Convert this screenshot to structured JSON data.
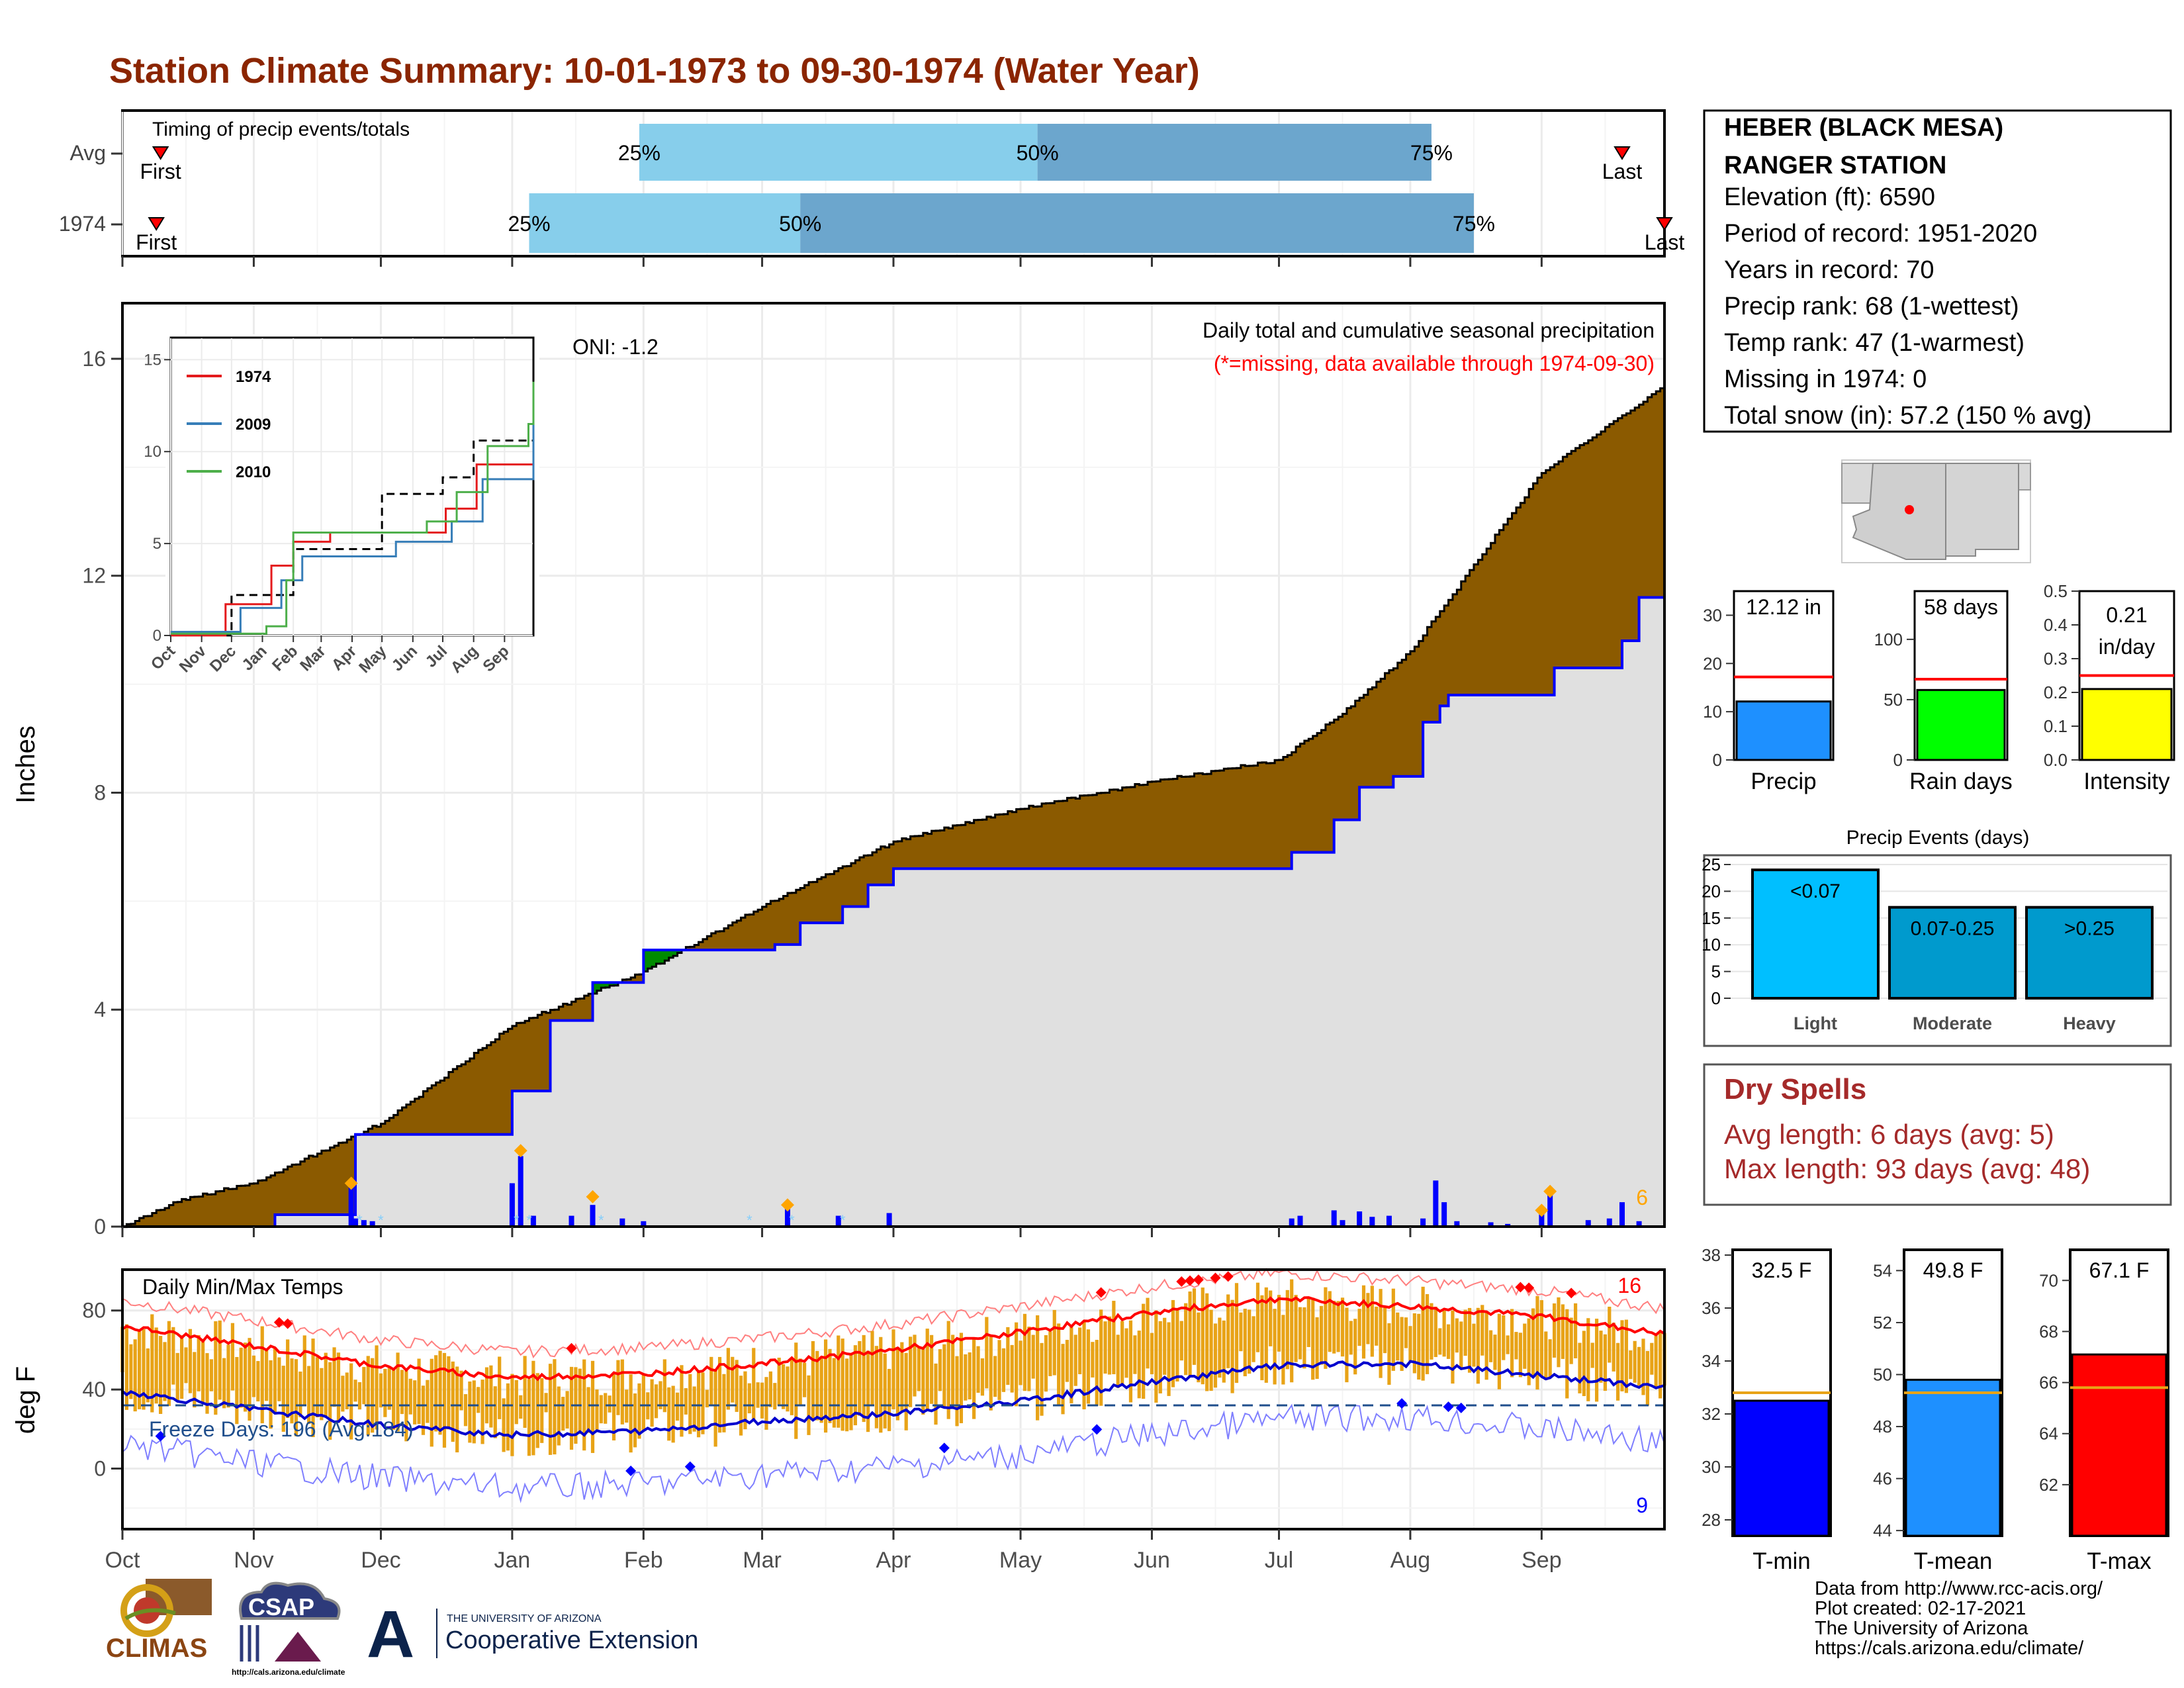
{
  "title": "Station Climate Summary: 10-01-1973 to 09-30-1974 (Water Year)",
  "colors": {
    "title": "#8b2500",
    "light_blue": "#87ceeb",
    "steel_blue": "#6ca6cd",
    "brown": "#8b5a00",
    "green": "#008b00",
    "red": "#ff0000",
    "blue": "#0000ff",
    "orange": "#e8a317",
    "dry_red": "#a52a2a"
  },
  "timing": {
    "title": "Timing of precip events/totals",
    "rows": [
      {
        "label": "Avg",
        "first_label": "First",
        "last_label": "Last",
        "q25": "25%",
        "q50": "50%",
        "q75": "75%"
      },
      {
        "label": "1974",
        "first_label": "First",
        "last_label": "Last",
        "q25": "25%",
        "q50": "50%",
        "q75": "75%"
      }
    ],
    "avg_marks": {
      "first": "1973-10-10",
      "q25": "1974-01-31",
      "q50": "1974-05-05",
      "q75": "1974-08-06",
      "last": "1974-09-20"
    },
    "year_marks": {
      "first": "1973-10-09",
      "q25": "1974-01-05",
      "q50": "1974-03-10",
      "q75": "1974-08-16",
      "last": "1974-09-30"
    }
  },
  "precip": {
    "ylabel": "Inches",
    "yticks": [
      0,
      4,
      8,
      12,
      16
    ],
    "ylim": [
      0,
      17
    ],
    "caption": "Daily total and cumulative seasonal precipitation",
    "note": "(*=missing, data available through 1974-09-30)",
    "oni": "ONI: -1.2",
    "extreme_count": "6",
    "chart_data": {
      "type": "area",
      "series": [
        {
          "name": "",
          "kind": "normal cumulative",
          "x": [
            "1973-10-01",
            "1973-10-15",
            "1973-11-01",
            "1973-12-01",
            "1974-01-01",
            "1974-02-01",
            "1974-03-01",
            "1974-04-01",
            "1974-05-01",
            "1974-06-01",
            "1974-07-01",
            "1974-07-15",
            "1974-08-01",
            "1974-09-01",
            "1974-09-30"
          ],
          "y": [
            0.0,
            0.5,
            0.8,
            1.9,
            3.7,
            4.7,
            5.9,
            7.1,
            7.7,
            8.2,
            8.6,
            9.4,
            10.6,
            13.9,
            15.5
          ]
        },
        {
          "name": "1974",
          "kind": "observed cumulative",
          "x": [
            "1973-10-01",
            "1973-11-06",
            "1973-11-23",
            "1973-11-25",
            "1973-12-31",
            "1974-01-01",
            "1974-01-09",
            "1974-01-10",
            "1974-01-20",
            "1974-01-26",
            "1974-02-01",
            "1974-02-12",
            "1974-03-04",
            "1974-03-07",
            "1974-03-10",
            "1974-03-20",
            "1974-03-26",
            "1974-04-01",
            "1974-06-01",
            "1974-07-01",
            "1974-07-04",
            "1974-07-14",
            "1974-07-17",
            "1974-07-20",
            "1974-07-28",
            "1974-08-04",
            "1974-08-08",
            "1974-08-10",
            "1974-09-01",
            "1974-09-04",
            "1974-09-17",
            "1974-09-20",
            "1974-09-24",
            "1974-09-30"
          ],
          "y": [
            0.0,
            0.22,
            0.22,
            1.7,
            1.7,
            2.5,
            2.5,
            3.8,
            4.5,
            4.5,
            5.1,
            5.1,
            5.2,
            5.2,
            5.6,
            5.9,
            6.3,
            6.6,
            6.6,
            6.6,
            6.9,
            7.5,
            7.5,
            8.1,
            8.3,
            9.3,
            9.6,
            9.8,
            9.8,
            10.3,
            10.3,
            10.8,
            11.6,
            12.1
          ]
        }
      ],
      "daily_bars": [
        [
          "1973-11-24",
          0.75
        ],
        [
          "1973-11-25",
          0.15
        ],
        [
          "1973-11-27",
          0.12
        ],
        [
          "1973-11-29",
          0.1
        ],
        [
          "1974-01-01",
          0.8
        ],
        [
          "1974-01-03",
          1.3
        ],
        [
          "1974-01-06",
          0.2
        ],
        [
          "1974-01-15",
          0.2
        ],
        [
          "1974-01-20",
          0.4
        ],
        [
          "1974-01-27",
          0.15
        ],
        [
          "1974-02-01",
          0.1
        ],
        [
          "1974-03-07",
          0.35
        ],
        [
          "1974-03-19",
          0.2
        ],
        [
          "1974-03-31",
          0.25
        ],
        [
          "1974-07-04",
          0.15
        ],
        [
          "1974-07-06",
          0.2
        ],
        [
          "1974-07-14",
          0.3
        ],
        [
          "1974-07-16",
          0.12
        ],
        [
          "1974-07-20",
          0.28
        ],
        [
          "1974-07-23",
          0.18
        ],
        [
          "1974-07-27",
          0.2
        ],
        [
          "1974-08-04",
          0.15
        ],
        [
          "1974-08-07",
          0.85
        ],
        [
          "1974-08-09",
          0.45
        ],
        [
          "1974-08-12",
          0.1
        ],
        [
          "1974-08-20",
          0.08
        ],
        [
          "1974-08-24",
          0.05
        ],
        [
          "1974-09-01",
          0.25
        ],
        [
          "1974-09-03",
          0.6
        ],
        [
          "1974-09-12",
          0.12
        ],
        [
          "1974-09-17",
          0.15
        ],
        [
          "1974-09-20",
          0.45
        ],
        [
          "1974-09-24",
          0.1
        ]
      ],
      "extreme_marks": [
        [
          "1973-11-24",
          0.8
        ],
        [
          "1974-01-03",
          1.4
        ],
        [
          "1974-01-20",
          0.55
        ],
        [
          "1974-03-07",
          0.4
        ],
        [
          "1974-09-01",
          0.3
        ],
        [
          "1974-09-03",
          0.65
        ]
      ]
    }
  },
  "inset": {
    "yticks": [
      0,
      5,
      10,
      15
    ],
    "months": [
      "Oct",
      "Nov",
      "Dec",
      "Jan",
      "Feb",
      "Mar",
      "Apr",
      "May",
      "Jun",
      "Jul",
      "Aug",
      "Sep"
    ],
    "legend": [
      {
        "label": "1974",
        "color": "#e41a1c"
      },
      {
        "label": "2009",
        "color": "#377eb8"
      },
      {
        "label": "2010",
        "color": "#4daf4a"
      }
    ],
    "chart_data": {
      "type": "line",
      "series": [
        {
          "name": "normal",
          "x": [
            "1973-10-01",
            "1973-12-01",
            "1974-02-01",
            "1974-05-01",
            "1974-07-01",
            "1974-08-01",
            "1974-09-30"
          ],
          "y": [
            0,
            2.2,
            4.7,
            7.7,
            8.6,
            10.6,
            15.5
          ]
        },
        {
          "name": "1974",
          "x": [
            "1973-10-01",
            "1973-11-25",
            "1974-01-10",
            "1974-02-01",
            "1974-03-10",
            "1974-07-04",
            "1974-08-04",
            "1974-09-30"
          ],
          "y": [
            0,
            1.7,
            3.8,
            5.1,
            5.6,
            6.9,
            9.3,
            12.1
          ]
        },
        {
          "name": "2009",
          "x": [
            "1973-10-01",
            "1973-12-10",
            "1974-01-20",
            "1974-02-10",
            "1974-05-15",
            "1974-07-10",
            "1974-08-10",
            "1974-09-30"
          ],
          "y": [
            0.2,
            1.5,
            3.0,
            4.3,
            5.1,
            6.2,
            8.5,
            11.7
          ]
        },
        {
          "name": "2010",
          "x": [
            "1973-10-01",
            "1974-01-05",
            "1974-01-25",
            "1974-02-01",
            "1974-06-15",
            "1974-07-15",
            "1974-08-15",
            "1974-09-25",
            "1974-09-30"
          ],
          "y": [
            0.1,
            0.5,
            3.0,
            5.6,
            6.2,
            7.8,
            10.3,
            11.5,
            13.8
          ]
        }
      ]
    }
  },
  "temps": {
    "ylabel": "deg F",
    "yticks": [
      0,
      40,
      80
    ],
    "ylim": [
      -30,
      100
    ],
    "title": "Daily Min/Max Temps",
    "freeze": "Freeze Days: 196 (Avg:184)",
    "freeze_line": 32,
    "hot_count": "16",
    "cold_count": "9",
    "chart_data": {
      "type": "line",
      "series": [
        {
          "name": "normal max",
          "x": [
            "1973-10-01",
            "1973-11-01",
            "1973-12-01",
            "1974-01-01",
            "1974-02-01",
            "1974-03-01",
            "1974-04-01",
            "1974-05-01",
            "1974-06-01",
            "1974-07-01",
            "1974-08-01",
            "1974-09-01",
            "1974-09-30"
          ],
          "y": [
            72,
            62,
            52,
            46,
            48,
            53,
            60,
            69,
            79,
            86,
            82,
            77,
            68
          ]
        },
        {
          "name": "normal min",
          "x": [
            "1973-10-01",
            "1973-11-01",
            "1973-12-01",
            "1974-01-01",
            "1974-02-01",
            "1974-03-01",
            "1974-04-01",
            "1974-05-01",
            "1974-06-01",
            "1974-07-01",
            "1974-08-01",
            "1974-09-01",
            "1974-09-30"
          ],
          "y": [
            39,
            30,
            22,
            17,
            19,
            24,
            28,
            34,
            44,
            52,
            53,
            47,
            41
          ]
        }
      ]
    }
  },
  "station": {
    "name_line1": "HEBER (BLACK MESA)",
    "name_line2": "RANGER STATION",
    "elevation": "Elevation (ft): 6590",
    "period": "Period of record: 1951-2020",
    "years": "Years in record: 70",
    "precip_rank": "Precip rank: 68 (1-wettest)",
    "temp_rank": "Temp rank: 47 (1-warmest)",
    "missing": "Missing in 1974: 0",
    "snow": "Total snow (in): 57.2 (150 % avg)"
  },
  "summary_bars": [
    {
      "label": "Precip",
      "value": 12.12,
      "avg": 17.2,
      "value_text": "12.12 in",
      "ymax": 35,
      "ticks": [
        "0",
        "10",
        "20",
        "30"
      ],
      "tick_values": [
        0,
        10,
        20,
        30
      ],
      "color": "#1e90ff"
    },
    {
      "label": "Rain days",
      "value": 58,
      "avg": 67,
      "value_text": "58 days",
      "ymax": 140,
      "ticks": [
        "0",
        "50",
        "100"
      ],
      "tick_values": [
        0,
        50,
        100
      ],
      "color": "#00ff00"
    },
    {
      "label": "Intensity",
      "value": 0.21,
      "avg": 0.25,
      "value_text": "0.21 in/day",
      "ymax": 0.5,
      "ticks": [
        "0.0",
        "0.1",
        "0.2",
        "0.3",
        "0.4",
        "0.5"
      ],
      "tick_values": [
        0,
        0.1,
        0.2,
        0.3,
        0.4,
        0.5
      ],
      "color": "#ffff00"
    }
  ],
  "events": {
    "title": "Precip Events (days)",
    "yticks": [
      0,
      5,
      10,
      15,
      20,
      25
    ],
    "chart_data": {
      "type": "bar",
      "categories": [
        "Light",
        "Moderate",
        "Heavy"
      ],
      "values": [
        24,
        17,
        17
      ],
      "bar_labels": [
        "<0.07",
        "0.07-0.25",
        ">0.25"
      ],
      "ylim": [
        0,
        25
      ]
    }
  },
  "dry": {
    "title": "Dry Spells",
    "avg_line": "Avg length: 6 days (avg: 5)",
    "max_line": "Max length: 93 days (avg: 48)"
  },
  "temp_bars": [
    {
      "label": "T-min",
      "value": 32.5,
      "avg": 32.8,
      "value_text": "32.5 F",
      "ymin": 27.4,
      "ymax": 38.2,
      "tick_values": [
        28,
        30,
        32,
        34,
        36,
        38
      ],
      "color": "#0000ff"
    },
    {
      "label": "T-mean",
      "value": 49.8,
      "avg": 49.3,
      "value_text": "49.8 F",
      "ymin": 43.8,
      "ymax": 54.8,
      "tick_values": [
        44,
        46,
        48,
        50,
        52,
        54
      ],
      "color": "#1e90ff"
    },
    {
      "label": "T-max",
      "value": 67.1,
      "avg": 65.8,
      "value_text": "67.1 F",
      "ymin": 60.0,
      "ymax": 71.2,
      "tick_values": [
        62,
        64,
        66,
        68,
        70
      ],
      "color": "#ff0000"
    }
  ],
  "months": [
    "Oct",
    "Nov",
    "Dec",
    "Jan",
    "Feb",
    "Mar",
    "Apr",
    "May",
    "Jun",
    "Jul",
    "Aug",
    "Sep"
  ],
  "footer": {
    "line1": "Data from http://www.rcc-acis.org/",
    "line2": "Plot created: 02-17-2021",
    "line3": "The University of Arizona",
    "line4": "https://cals.arizona.edu/climate/"
  },
  "logos": {
    "climas": "CLIMAS",
    "csap": "CSAP",
    "csap_url": "http://cals.arizona.edu/climate",
    "ua_top": "THE UNIVERSITY OF ARIZONA",
    "ua_bottom": "Cooperative Extension",
    "ua_letter": "A"
  }
}
